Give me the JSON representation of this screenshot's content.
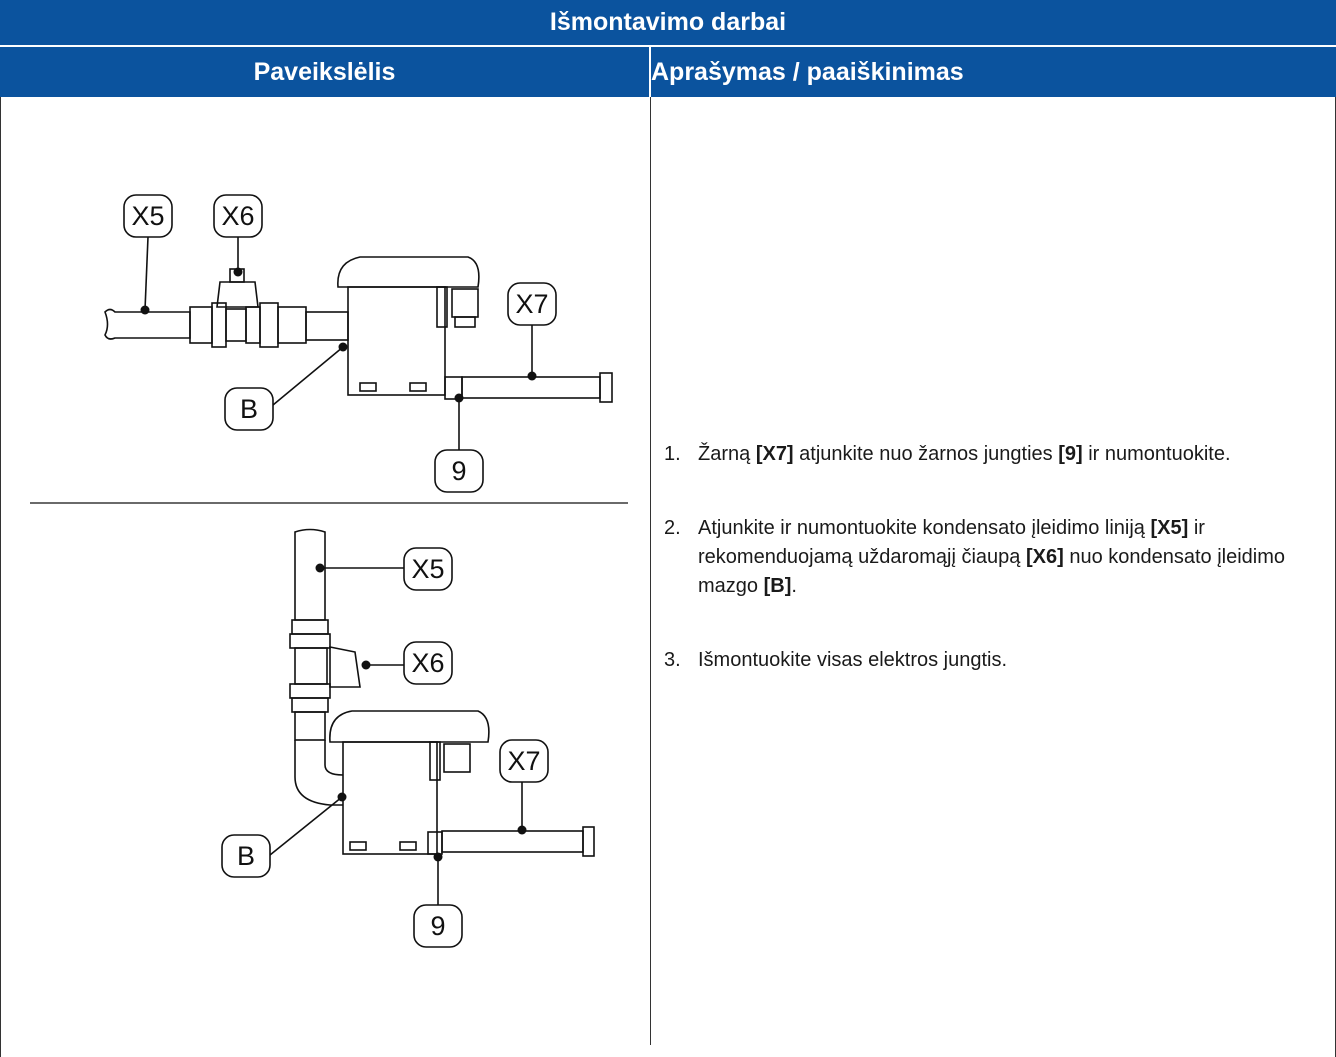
{
  "table": {
    "title": "Išmontavimo darbai",
    "columns": [
      "Paveikslėlis",
      "Aprašymas / paaiškinimas"
    ]
  },
  "figures": [
    {
      "callouts": [
        "X5",
        "X6",
        "X7",
        "B",
        "9"
      ]
    },
    {
      "callouts": [
        "X5",
        "X6",
        "X7",
        "B",
        "9"
      ]
    }
  ],
  "steps": [
    {
      "number": "1.",
      "parts": [
        {
          "text": "Žarną ",
          "bold": false
        },
        {
          "text": "[X7]",
          "bold": true
        },
        {
          "text": " atjunkite nuo žarnos jungties ",
          "bold": false
        },
        {
          "text": "[9]",
          "bold": true
        },
        {
          "text": " ir numontuokite.",
          "bold": false
        }
      ]
    },
    {
      "number": "2.",
      "parts": [
        {
          "text": "Atjunkite ir numontuokite kondensato įleidimo liniją ",
          "bold": false
        },
        {
          "text": "[X5]",
          "bold": true
        },
        {
          "text": " ir rekomenduojamą uždaromąjį čiaupą ",
          "bold": false
        },
        {
          "text": "[X6]",
          "bold": true
        },
        {
          "text": " nuo kondensato įleidimo mazgo ",
          "bold": false
        },
        {
          "text": "[B]",
          "bold": true
        },
        {
          "text": ".",
          "bold": false
        }
      ]
    },
    {
      "number": "3.",
      "parts": [
        {
          "text": "Išmontuokite visas elektros jungtis.",
          "bold": false
        }
      ]
    }
  ]
}
